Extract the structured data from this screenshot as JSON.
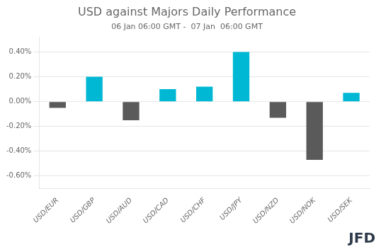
{
  "chart_data": {
    "type": "bar",
    "title": "USD against Majors Daily Performance",
    "subtitle": "06 Jan 06:00 GMT -  07 Jan  06:00 GMT",
    "annotations": [
      "JFD"
    ],
    "categories": [
      "USD/EUR",
      "USD/GBP",
      "USD/AUD",
      "USD/CAD",
      "USD/CHF",
      "USD/JPY",
      "USD/NZD",
      "USD/NOK",
      "USD/SEK"
    ],
    "values": [
      -0.05,
      0.2,
      -0.15,
      0.1,
      0.12,
      0.4,
      -0.13,
      -0.47,
      0.07
    ],
    "colors": [
      "#5a5a5a",
      "#00b8d4",
      "#5a5a5a",
      "#00b8d4",
      "#00b8d4",
      "#00b8d4",
      "#5a5a5a",
      "#5a5a5a",
      "#00b8d4"
    ],
    "ylim": [
      -0.7,
      0.52
    ],
    "yticks": [
      {
        "value": -0.6,
        "label": "-0.60%"
      },
      {
        "value": -0.4,
        "label": "-0.40%"
      },
      {
        "value": -0.2,
        "label": "-0.20%"
      },
      {
        "value": 0.0,
        "label": "0.00%"
      },
      {
        "value": 0.2,
        "label": "0.20%"
      },
      {
        "value": 0.4,
        "label": "0.40%"
      }
    ],
    "grid": true
  }
}
